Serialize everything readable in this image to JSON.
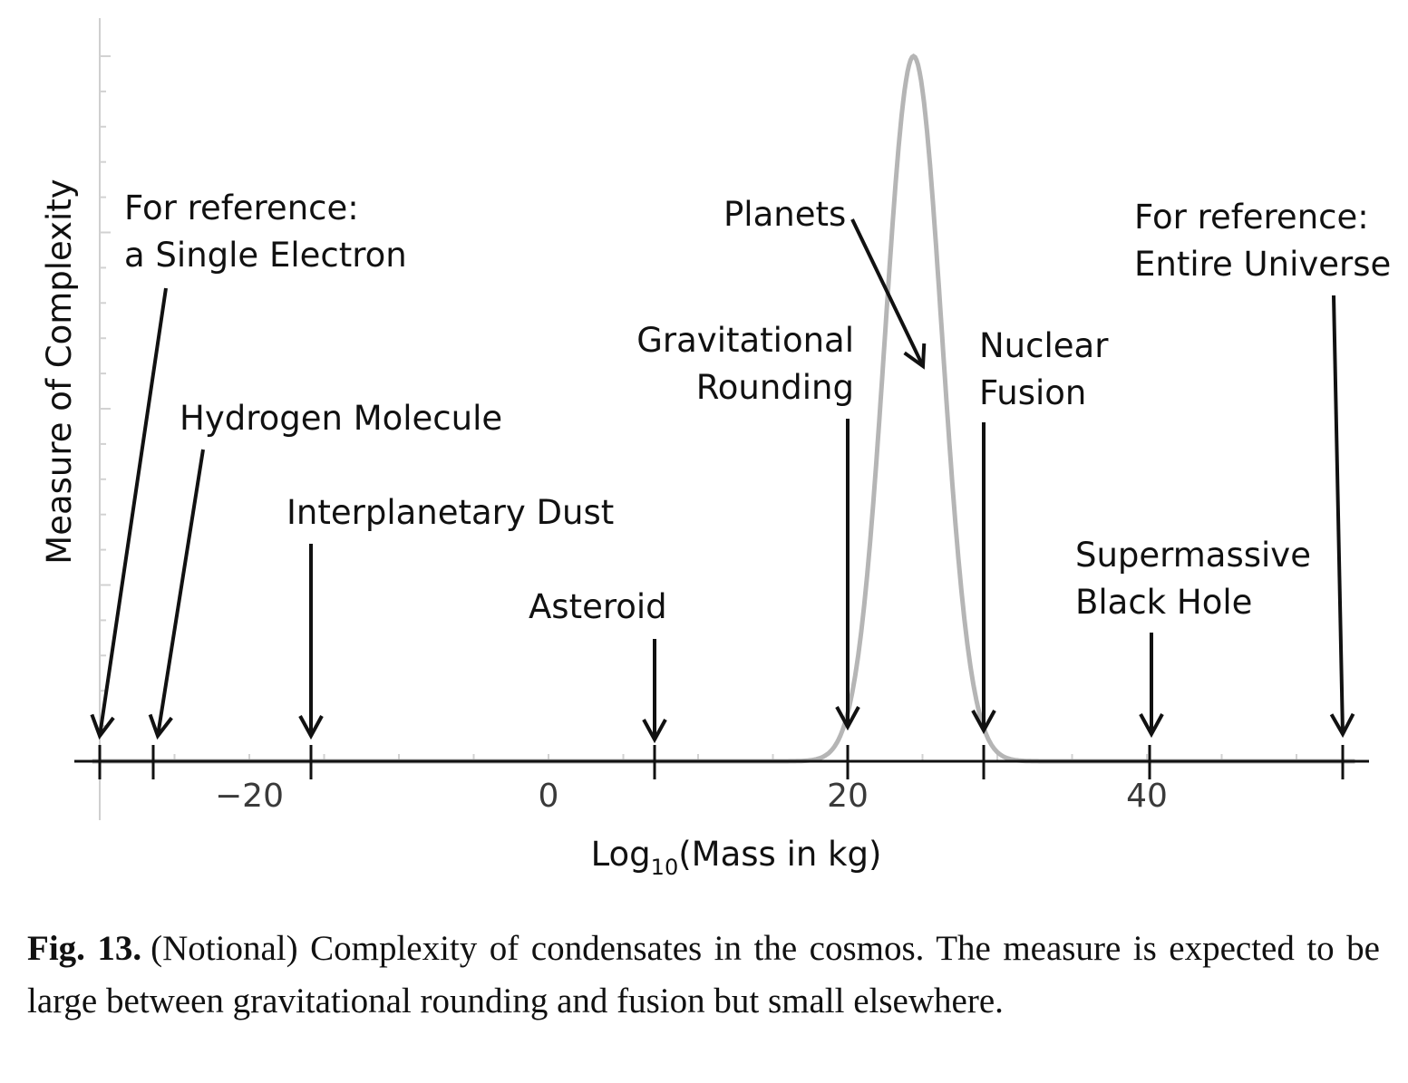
{
  "chart_data": {
    "type": "line",
    "ylabel": "Measure of Complexity",
    "xlabel_main": "Log",
    "xlabel_sub": "10",
    "xlabel_rest": "(Mass in kg)",
    "x_ticks": [
      {
        "value": -20,
        "label": "−20"
      },
      {
        "value": 0,
        "label": "0"
      },
      {
        "value": 20,
        "label": "20"
      },
      {
        "value": 40,
        "label": "40"
      }
    ],
    "xlim": [
      -30.5,
      54
    ],
    "ylim": [
      0,
      1
    ],
    "grid": false,
    "series": [
      {
        "curve": "gaussian",
        "peak_x": 24.4,
        "peak_y": 1.0,
        "sigma": 1.9,
        "color": "#b5b5b5"
      }
    ],
    "annotations": [
      {
        "id": "electron",
        "lines": [
          "For reference:",
          "a Single Electron"
        ],
        "x": -30
      },
      {
        "id": "hydrogen",
        "lines": [
          "Hydrogen Molecule"
        ],
        "x": -26.3
      },
      {
        "id": "dust",
        "lines": [
          "Interplanetary Dust"
        ],
        "x": -16
      },
      {
        "id": "asteroid",
        "lines": [
          "Asteroid"
        ],
        "x": 7
      },
      {
        "id": "planets",
        "lines": [
          "Planets"
        ],
        "x": 25
      },
      {
        "id": "rounding",
        "lines": [
          "Gravitational",
          "Rounding"
        ],
        "x": 19.8
      },
      {
        "id": "fusion",
        "lines": [
          "Nuclear",
          "Fusion"
        ],
        "x": 29
      },
      {
        "id": "blackhole",
        "lines": [
          "Supermassive",
          "Black Hole"
        ],
        "x": 40
      },
      {
        "id": "universe",
        "lines": [
          "For reference:",
          "Entire Universe"
        ],
        "x": 52.8
      }
    ]
  },
  "caption": {
    "label": "Fig. 13.",
    "text": "(Notional) Complexity of condensates in the cosmos. The measure is expected to be large between gravitational rounding and fusion but small elsewhere."
  }
}
